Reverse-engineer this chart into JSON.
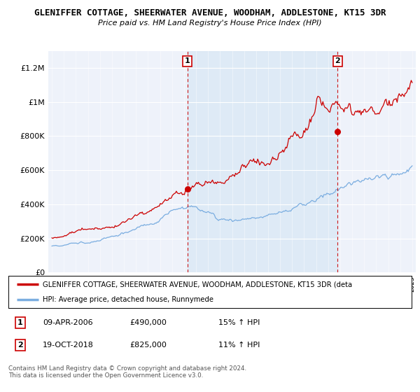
{
  "title_line1": "GLENIFFER COTTAGE, SHEERWATER AVENUE, WOODHAM, ADDLESTONE, KT15 3DR",
  "title_line2": "Price paid vs. HM Land Registry's House Price Index (HPI)",
  "ylabel_ticks": [
    "£0",
    "£200K",
    "£400K",
    "£600K",
    "£800K",
    "£1M",
    "£1.2M"
  ],
  "ytick_values": [
    0,
    200000,
    400000,
    600000,
    800000,
    1000000,
    1200000
  ],
  "ylim": [
    0,
    1300000
  ],
  "year_start": 1995,
  "year_end": 2025,
  "hpi_color": "#7aade0",
  "price_color": "#cc0000",
  "marker1_year": 2006.27,
  "marker1_price": 490000,
  "marker2_year": 2018.8,
  "marker2_price": 825000,
  "vline_color": "#cc0000",
  "highlight_color": "#d8e8f5",
  "background_color": "#eef2fa",
  "legend_label_red": "GLENIFFER COTTAGE, SHEERWATER AVENUE, WOODHAM, ADDLESTONE, KT15 3DR (deta",
  "legend_label_blue": "HPI: Average price, detached house, Runnymede",
  "annotation1_date": "09-APR-2006",
  "annotation1_price": "£490,000",
  "annotation1_hpi": "15% ↑ HPI",
  "annotation2_date": "19-OCT-2018",
  "annotation2_price": "£825,000",
  "annotation2_hpi": "11% ↑ HPI",
  "footer": "Contains HM Land Registry data © Crown copyright and database right 2024.\nThis data is licensed under the Open Government Licence v3.0."
}
